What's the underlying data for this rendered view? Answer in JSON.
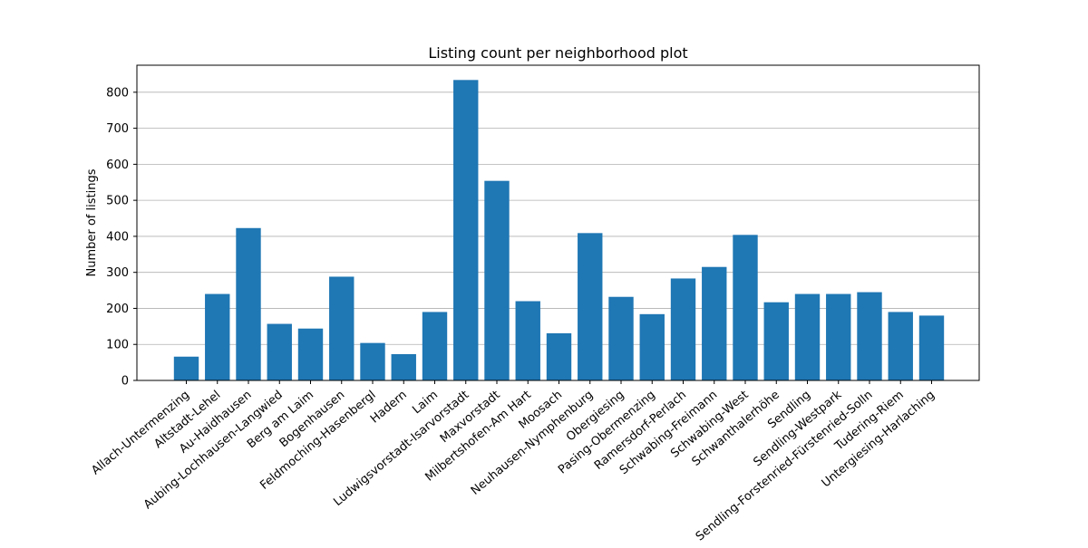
{
  "chart_data": {
    "type": "bar",
    "title": "Listing count per neighborhood plot",
    "xlabel": "",
    "ylabel": "Number of listings",
    "ylim": [
      0,
      875
    ],
    "yticks": [
      0,
      100,
      200,
      300,
      400,
      500,
      600,
      700,
      800
    ],
    "grid": "y-major",
    "bar_color": "#1f77b4",
    "grid_color": "#b0b0b0",
    "categories": [
      "Allach-Untermenzing",
      "Altstadt-Lehel",
      "Au-Haidhausen",
      "Aubing-Lochhausen-Langwied",
      "Berg am Laim",
      "Bogenhausen",
      "Feldmoching-Hasenbergl",
      "Hadern",
      "Laim",
      "Ludwigsvorstadt-Isarvorstadt",
      "Maxvorstadt",
      "Milbertshofen-Am Hart",
      "Moosach",
      "Neuhausen-Nymphenburg",
      "Obergiesing",
      "Pasing-Obermenzing",
      "Ramersdorf-Perlach",
      "Schwabing-Freimann",
      "Schwabing-West",
      "Schwanthalerhöhe",
      "Sendling",
      "Sendling-Westpark",
      "Sendling-Forstenried-Fürstenried-Solln",
      "Tudering-Riem",
      "Untergiesing-Harlaching"
    ],
    "values": [
      66,
      240,
      423,
      157,
      144,
      288,
      104,
      73,
      190,
      834,
      554,
      220,
      131,
      409,
      232,
      184,
      283,
      315,
      404,
      217,
      240,
      240,
      245,
      190,
      180
    ]
  }
}
